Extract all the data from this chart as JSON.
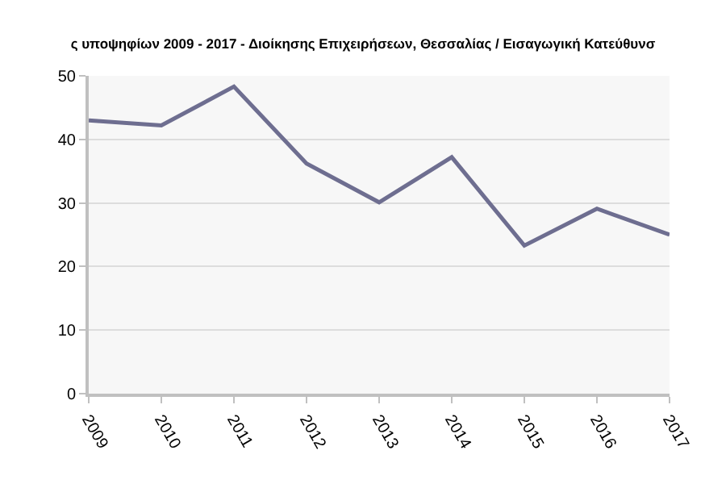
{
  "chart_data": {
    "type": "line",
    "title": "ς υποψηφίων 2009 - 2017 - Διοίκησης Επιχειρήσεων, Θεσσαλίας / Εισαγωγική Κατεύθυνσ",
    "categories": [
      "2009",
      "2010",
      "2011",
      "2012",
      "2013",
      "2014",
      "2015",
      "2016",
      "2017"
    ],
    "series": [
      {
        "color": "#6e6e90",
        "values": [
          43.0,
          42.2,
          48.3,
          36.2,
          30.1,
          37.2,
          23.3,
          29.1,
          25.0
        ]
      }
    ],
    "ylim": [
      0,
      50
    ],
    "yticks": [
      0,
      10,
      20,
      30,
      40,
      50
    ],
    "grid": "y",
    "marker": "none",
    "line_style": "solid"
  }
}
